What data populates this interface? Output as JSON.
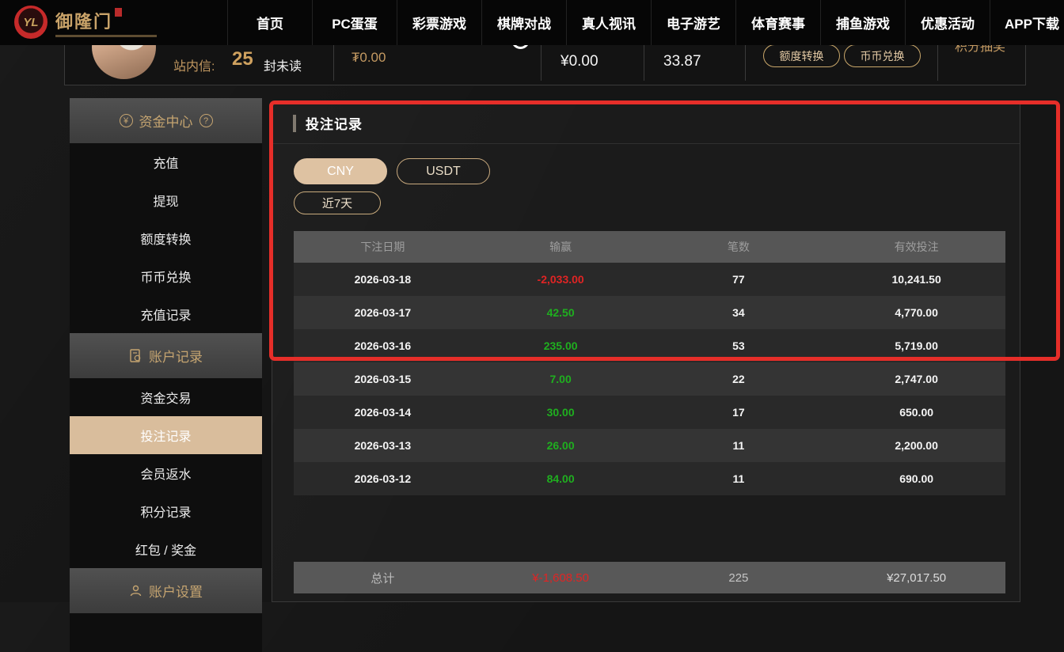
{
  "brand": {
    "name": "御隆门",
    "monogram": "YL"
  },
  "nav": {
    "items": [
      "首页",
      "PC蛋蛋",
      "彩票游戏",
      "棋牌对战",
      "真人视讯",
      "电子游艺",
      "体育赛事",
      "捕鱼游戏",
      "优惠活动",
      "APP下载"
    ]
  },
  "user_bar": {
    "messages_label": "站内信:",
    "unread_count": "25",
    "unread_suffix": "封未读",
    "usdt_balance": "₮0.00",
    "cny_balance": "¥0.00",
    "points_balance": "33.87",
    "transfer_button": "额度转换",
    "exchange_button": "币币兑换",
    "lottery_link": "积分抽奖"
  },
  "sidebar": {
    "sections": [
      {
        "title": "资金中心",
        "icon": "yen-circle-icon",
        "help_icon": "help-circle-icon",
        "items": [
          "充值",
          "提现",
          "额度转换",
          "币币兑换",
          "充值记录"
        ],
        "active_item": ""
      },
      {
        "title": "账户记录",
        "icon": "ledger-icon",
        "help_icon": "",
        "items": [
          "资金交易",
          "投注记录",
          "会员返水",
          "积分记录",
          "红包 / 奖金"
        ],
        "active_item": "投注记录"
      },
      {
        "title": "账户设置",
        "icon": "user-icon",
        "help_icon": "",
        "items": [],
        "active_item": ""
      }
    ]
  },
  "main": {
    "title": "投注记录",
    "currency_tabs": [
      {
        "label": "CNY",
        "active": true
      },
      {
        "label": "USDT",
        "active": false
      }
    ],
    "date_filter": "近7天",
    "table": {
      "headers": [
        "下注日期",
        "输赢",
        "笔数",
        "有效投注"
      ],
      "rows": [
        {
          "date": "2026-03-18",
          "win_loss": "-2,033.00",
          "win_loss_color": "red",
          "count": "77",
          "valid_bets": "10,241.50"
        },
        {
          "date": "2026-03-17",
          "win_loss": "42.50",
          "win_loss_color": "green",
          "count": "34",
          "valid_bets": "4,770.00"
        },
        {
          "date": "2026-03-16",
          "win_loss": "235.00",
          "win_loss_color": "green",
          "count": "53",
          "valid_bets": "5,719.00"
        },
        {
          "date": "2026-03-15",
          "win_loss": "7.00",
          "win_loss_color": "green",
          "count": "22",
          "valid_bets": "2,747.00"
        },
        {
          "date": "2026-03-14",
          "win_loss": "30.00",
          "win_loss_color": "green",
          "count": "17",
          "valid_bets": "650.00"
        },
        {
          "date": "2026-03-13",
          "win_loss": "26.00",
          "win_loss_color": "green",
          "count": "11",
          "valid_bets": "2,200.00"
        },
        {
          "date": "2026-03-12",
          "win_loss": "84.00",
          "win_loss_color": "green",
          "count": "11",
          "valid_bets": "690.00"
        }
      ],
      "total": {
        "label": "总计",
        "win_loss": "¥-1,608.50",
        "win_loss_color": "red",
        "count": "225",
        "valid_bets": "¥27,017.50"
      }
    }
  },
  "colors": {
    "accent_gold": "#c9a369",
    "active_tan": "#d9bd9c",
    "loss_red": "#e02424",
    "win_green": "#1faf1f",
    "annotation_red": "#e62e29"
  }
}
